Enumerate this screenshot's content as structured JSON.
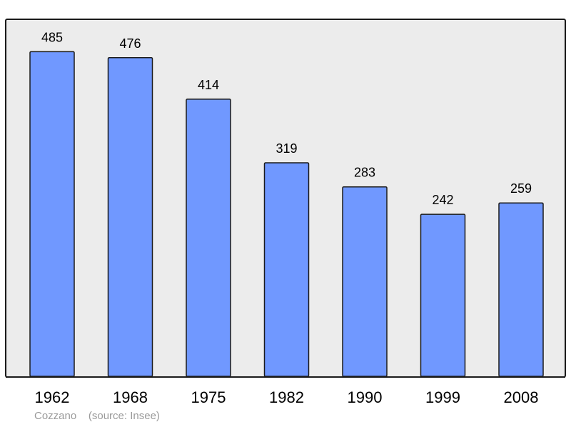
{
  "chart_data": {
    "type": "bar",
    "categories": [
      "1962",
      "1968",
      "1975",
      "1982",
      "1990",
      "1999",
      "2008"
    ],
    "values": [
      485,
      476,
      414,
      319,
      283,
      242,
      259
    ],
    "value_labels": [
      "485",
      "476",
      "414",
      "319",
      "283",
      "242",
      "259"
    ],
    "title": "",
    "xlabel": "",
    "ylabel": "",
    "ylim": [
      0,
      500
    ],
    "grid": false,
    "legend": "none"
  },
  "caption": {
    "place": "Cozzano",
    "source": "(source: Insee)"
  },
  "colors": {
    "bar_fill": "#7098ff",
    "bar_stroke": "#1a1a1a",
    "plot_background": "#ececec",
    "frame": "#1a1a1a",
    "caption_text": "#9a9a9a"
  }
}
